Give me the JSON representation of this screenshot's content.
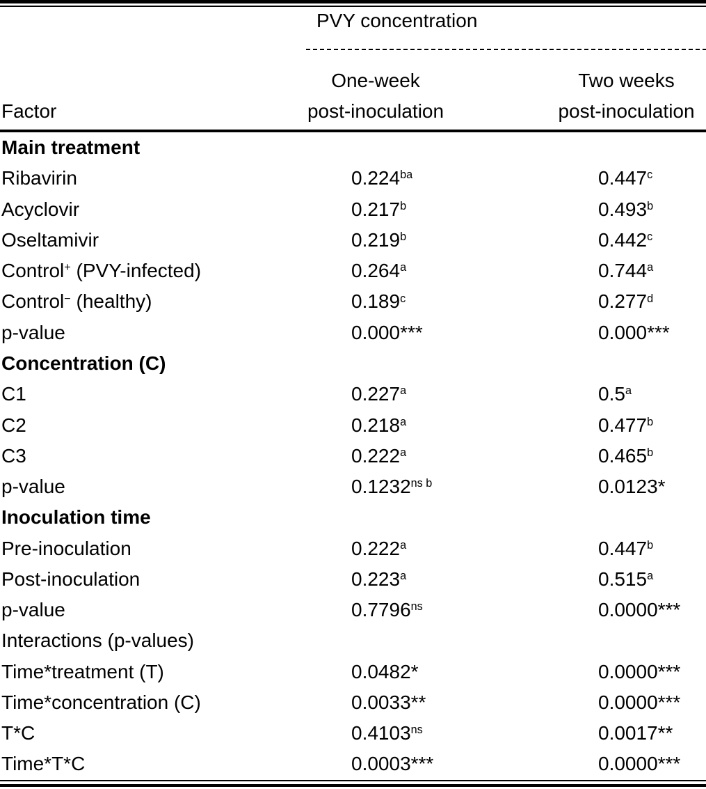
{
  "header": {
    "spanner": "PVY concentration",
    "factor": "Factor",
    "col1": {
      "line1": "One-week",
      "line2": "post-inoculation"
    },
    "col2": {
      "line1": "Two weeks",
      "line2": "post-inoculation"
    }
  },
  "rows": [
    {
      "label": "Main treatment",
      "section": true
    },
    {
      "label": "Ribavirin",
      "v1": "0.224",
      "s1": "ba",
      "v2": "0.447",
      "s2": "c"
    },
    {
      "label": "Acyclovir",
      "v1": "0.217",
      "s1": "b",
      "v2": "0.493",
      "s2": "b"
    },
    {
      "label": "Oseltamivir",
      "v1": "0.219",
      "s1": "b",
      "v2": "0.442",
      "s2": "c"
    },
    {
      "label": "Control",
      "lsup": "+",
      "lpost": " (PVY-infected)",
      "v1": "0.264",
      "s1": "a",
      "v2": "0.744",
      "s2": "a"
    },
    {
      "label": "Control",
      "lsup": "−",
      "lpost": " (healthy)",
      "v1": "0.189",
      "s1": "c",
      "v2": "0.277",
      "s2": "d"
    },
    {
      "label": "p-value",
      "v1": "0.000***",
      "v2": "0.000***"
    },
    {
      "label": "Concentration (C)",
      "section": true
    },
    {
      "label": "C1",
      "v1": "0.227",
      "s1": "a",
      "v2": "0.5",
      "s2": "a"
    },
    {
      "label": "C2",
      "v1": "0.218",
      "s1": "a",
      "v2": "0.477",
      "s2": "b"
    },
    {
      "label": "C3",
      "v1": "0.222",
      "s1": "a",
      "v2": "0.465",
      "s2": "b"
    },
    {
      "label": "p-value",
      "v1": "0.1232",
      "s1": "ns b",
      "v2": "0.0123*"
    },
    {
      "label": "Inoculation time",
      "section": true
    },
    {
      "label": "Pre-inoculation",
      "v1": "0.222",
      "s1": "a",
      "v2": "0.447",
      "s2": "b"
    },
    {
      "label": "Post-inoculation",
      "v1": "0.223",
      "s1": "a",
      "v2": "0.515",
      "s2": "a"
    },
    {
      "label": "p-value",
      "v1": "0.7796",
      "s1": "ns",
      "v2": "0.0000***"
    },
    {
      "label": "Interactions (p-values)"
    },
    {
      "label": "Time*treatment (T)",
      "v1": "0.0482*",
      "v2": "0.0000***"
    },
    {
      "label": "Time*concentration (C)",
      "v1": "0.0033**",
      "v2": "0.0000***"
    },
    {
      "label": "T*C",
      "v1": "0.4103",
      "s1": "ns",
      "v2": "0.0017**"
    },
    {
      "label": "Time*T*C",
      "v1": "0.0003***",
      "v2": "0.0000***"
    }
  ]
}
